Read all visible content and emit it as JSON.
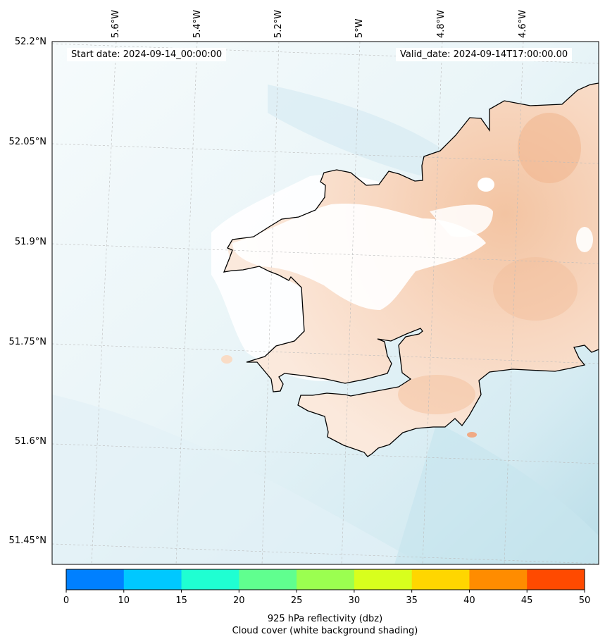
{
  "map": {
    "start_date": "Start date: 2024-09-14_00:00:00",
    "valid_date": "Valid_date: 2024-09-14T17:00:00.00",
    "lat_labels": [
      "52.2°N",
      "52.05°N",
      "51.9°N",
      "51.75°N",
      "51.6°N",
      "51.45°N"
    ],
    "lon_labels": [
      "5.6°W",
      "5.4°W",
      "5.2°W",
      "5°W",
      "4.8°W",
      "4.6°W"
    ],
    "colors": {
      "ocean_light": "#f3f9fb",
      "ocean_mid": "#d9edf3",
      "ocean_dark": "#b9dde8",
      "cloud_white": "#ffffff",
      "land_peach_light": "#fbe5d6",
      "land_peach_mid": "#f6cfb3",
      "land_peach_dark": "#f0b98f",
      "coastline": "#000000",
      "gridline": "#bbbbbb"
    }
  },
  "colorbar": {
    "ticks": [
      "0",
      "10",
      "15",
      "20",
      "25",
      "30",
      "35",
      "40",
      "45",
      "50"
    ],
    "colors": [
      "#0080ff",
      "#00c8ff",
      "#1fffd2",
      "#60ff8f",
      "#9bff50",
      "#d8ff1d",
      "#ffd600",
      "#ff8c00",
      "#ff4a00"
    ],
    "label_line1": "925 hPa reflectivity (dbz)",
    "label_line2": "Cloud cover (white background shading)"
  }
}
